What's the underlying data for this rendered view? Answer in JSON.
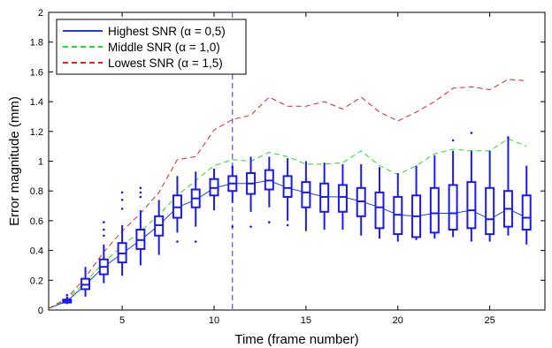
{
  "chart_data": {
    "type": "box-and-line",
    "title": "",
    "xlabel": "Time (frame number)",
    "ylabel": "Error magnitude (mm)",
    "xlim": [
      1,
      28
    ],
    "ylim": [
      0,
      2
    ],
    "xticks": [
      5,
      10,
      15,
      20,
      25
    ],
    "yticks": [
      0,
      0.2,
      0.4,
      0.6,
      0.8,
      1,
      1.2,
      1.4,
      1.6,
      1.8,
      2
    ],
    "ytick_labels": [
      "0",
      "0.2",
      "0.4",
      "0.6",
      "0.8",
      "1",
      "1.2",
      "1.4",
      "1.6",
      "1.8",
      "2"
    ],
    "grid": false,
    "legend_position": "top-left",
    "vertical_marker_x": 11,
    "series": [
      {
        "name": "Highest SNR (α = 0,5)",
        "color": "#1f3fd6",
        "style": "solid",
        "x": [
          1,
          2,
          3,
          4,
          5,
          6,
          7,
          8,
          9,
          10,
          11,
          12,
          13,
          14,
          15,
          16,
          17,
          18,
          19,
          20,
          21,
          22,
          23,
          24,
          25,
          26,
          27
        ],
        "y": [
          0.01,
          0.06,
          0.17,
          0.29,
          0.38,
          0.47,
          0.57,
          0.69,
          0.74,
          0.82,
          0.85,
          0.85,
          0.87,
          0.82,
          0.79,
          0.76,
          0.76,
          0.73,
          0.69,
          0.64,
          0.63,
          0.65,
          0.65,
          0.67,
          0.61,
          0.68,
          0.62
        ]
      },
      {
        "name": "Middle SNR (α = 1,0)",
        "color": "#22dd22",
        "style": "dashed",
        "x": [
          1,
          2,
          3,
          4,
          5,
          6,
          7,
          8,
          9,
          10,
          11,
          12,
          13,
          14,
          15,
          16,
          17,
          18,
          19,
          20,
          21,
          22,
          23,
          24,
          25,
          26,
          27
        ],
        "y": [
          0.01,
          0.07,
          0.19,
          0.32,
          0.43,
          0.53,
          0.64,
          0.77,
          0.87,
          0.97,
          1.01,
          1.0,
          1.06,
          1.03,
          0.98,
          0.98,
          0.99,
          1.07,
          0.97,
          0.91,
          0.97,
          1.05,
          1.08,
          1.07,
          1.07,
          1.15,
          1.1
        ]
      },
      {
        "name": "Lowest SNR (α = 1,5)",
        "color": "#dd2222",
        "style": "dashed",
        "x": [
          1,
          2,
          3,
          4,
          5,
          6,
          7,
          8,
          9,
          10,
          11,
          12,
          13,
          14,
          15,
          16,
          17,
          18,
          19,
          20,
          21,
          22,
          23,
          24,
          25,
          26,
          27
        ],
        "y": [
          0.01,
          0.08,
          0.22,
          0.39,
          0.53,
          0.65,
          0.79,
          1.01,
          1.03,
          1.21,
          1.28,
          1.31,
          1.43,
          1.37,
          1.37,
          1.4,
          1.35,
          1.43,
          1.33,
          1.27,
          1.33,
          1.4,
          1.49,
          1.5,
          1.48,
          1.55,
          1.54
        ]
      }
    ],
    "boxes": [
      {
        "x": 2,
        "q1": 0.05,
        "median": 0.06,
        "q3": 0.07,
        "wlo": 0.04,
        "whi": 0.09,
        "outliers": [
          0.1
        ]
      },
      {
        "x": 3,
        "q1": 0.14,
        "median": 0.17,
        "q3": 0.21,
        "wlo": 0.09,
        "whi": 0.29,
        "outliers": []
      },
      {
        "x": 4,
        "q1": 0.24,
        "median": 0.29,
        "q3": 0.34,
        "wlo": 0.18,
        "whi": 0.44,
        "outliers": [
          0.5,
          0.54,
          0.59
        ]
      },
      {
        "x": 5,
        "q1": 0.32,
        "median": 0.38,
        "q3": 0.45,
        "wlo": 0.23,
        "whi": 0.57,
        "outliers": [
          0.68,
          0.74,
          0.79
        ]
      },
      {
        "x": 6,
        "q1": 0.41,
        "median": 0.47,
        "q3": 0.54,
        "wlo": 0.3,
        "whi": 0.67,
        "outliers": [
          0.76,
          0.79,
          0.82
        ]
      },
      {
        "x": 7,
        "q1": 0.5,
        "median": 0.57,
        "q3": 0.63,
        "wlo": 0.37,
        "whi": 0.74,
        "outliers": []
      },
      {
        "x": 8,
        "q1": 0.62,
        "median": 0.69,
        "q3": 0.77,
        "wlo": 0.52,
        "whi": 0.9,
        "outliers": [
          0.46
        ]
      },
      {
        "x": 9,
        "q1": 0.69,
        "median": 0.75,
        "q3": 0.81,
        "wlo": 0.56,
        "whi": 0.93,
        "outliers": [
          0.46
        ]
      },
      {
        "x": 10,
        "q1": 0.77,
        "median": 0.82,
        "q3": 0.88,
        "wlo": 0.67,
        "whi": 0.95,
        "outliers": []
      },
      {
        "x": 11,
        "q1": 0.8,
        "median": 0.85,
        "q3": 0.9,
        "wlo": 0.72,
        "whi": 0.97,
        "outliers": [
          0.56,
          0.96
        ]
      },
      {
        "x": 12,
        "q1": 0.78,
        "median": 0.85,
        "q3": 0.92,
        "wlo": 0.66,
        "whi": 1.03,
        "outliers": [
          0.56
        ]
      },
      {
        "x": 13,
        "q1": 0.81,
        "median": 0.87,
        "q3": 0.94,
        "wlo": 0.69,
        "whi": 1.03,
        "outliers": [
          0.59
        ]
      },
      {
        "x": 14,
        "q1": 0.76,
        "median": 0.82,
        "q3": 0.9,
        "wlo": 0.6,
        "whi": 1.02,
        "outliers": [
          0.57
        ]
      },
      {
        "x": 15,
        "q1": 0.69,
        "median": 0.79,
        "q3": 0.86,
        "wlo": 0.53,
        "whi": 1.0,
        "outliers": []
      },
      {
        "x": 16,
        "q1": 0.66,
        "median": 0.76,
        "q3": 0.85,
        "wlo": 0.54,
        "whi": 0.99,
        "outliers": []
      },
      {
        "x": 17,
        "q1": 0.66,
        "median": 0.76,
        "q3": 0.84,
        "wlo": 0.54,
        "whi": 0.98,
        "outliers": []
      },
      {
        "x": 18,
        "q1": 0.63,
        "median": 0.73,
        "q3": 0.82,
        "wlo": 0.5,
        "whi": 0.98,
        "outliers": []
      },
      {
        "x": 19,
        "q1": 0.55,
        "median": 0.69,
        "q3": 0.79,
        "wlo": 0.48,
        "whi": 0.96,
        "outliers": []
      },
      {
        "x": 20,
        "q1": 0.51,
        "median": 0.64,
        "q3": 0.76,
        "wlo": 0.46,
        "whi": 0.92,
        "outliers": []
      },
      {
        "x": 21,
        "q1": 0.49,
        "median": 0.63,
        "q3": 0.77,
        "wlo": 0.47,
        "whi": 0.97,
        "outliers": []
      },
      {
        "x": 22,
        "q1": 0.52,
        "median": 0.65,
        "q3": 0.82,
        "wlo": 0.48,
        "whi": 1.04,
        "outliers": []
      },
      {
        "x": 23,
        "q1": 0.54,
        "median": 0.65,
        "q3": 0.84,
        "wlo": 0.49,
        "whi": 1.07,
        "outliers": [
          1.14
        ]
      },
      {
        "x": 24,
        "q1": 0.55,
        "median": 0.67,
        "q3": 0.86,
        "wlo": 0.46,
        "whi": 1.07,
        "outliers": [
          1.19
        ]
      },
      {
        "x": 25,
        "q1": 0.51,
        "median": 0.61,
        "q3": 0.82,
        "wlo": 0.46,
        "whi": 1.07,
        "outliers": []
      },
      {
        "x": 26,
        "q1": 0.56,
        "median": 0.68,
        "q3": 0.8,
        "wlo": 0.5,
        "whi": 1.16,
        "outliers": [
          1.16
        ]
      },
      {
        "x": 27,
        "q1": 0.54,
        "median": 0.62,
        "q3": 0.77,
        "wlo": 0.44,
        "whi": 0.97,
        "outliers": []
      }
    ]
  }
}
